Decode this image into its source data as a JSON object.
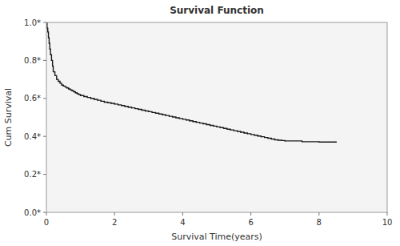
{
  "chart_data": {
    "type": "step",
    "title": "Survival Function",
    "xlabel": "Survival Time(years)",
    "ylabel": "Cum Survival",
    "x": [
      0.0,
      0.02,
      0.04,
      0.06,
      0.08,
      0.1,
      0.12,
      0.15,
      0.18,
      0.2,
      0.25,
      0.3,
      0.35,
      0.4,
      0.45,
      0.5,
      0.55,
      0.6,
      0.65,
      0.7,
      0.75,
      0.8,
      0.85,
      0.9,
      0.95,
      1.0,
      1.1,
      1.2,
      1.3,
      1.4,
      1.5,
      1.6,
      1.7,
      1.8,
      1.9,
      2.0,
      2.1,
      2.2,
      2.3,
      2.4,
      2.5,
      2.6,
      2.7,
      2.8,
      2.9,
      3.0,
      3.1,
      3.2,
      3.3,
      3.4,
      3.5,
      3.6,
      3.7,
      3.8,
      3.9,
      4.0,
      4.1,
      4.2,
      4.3,
      4.4,
      4.5,
      4.6,
      4.7,
      4.8,
      4.9,
      5.0,
      5.1,
      5.2,
      5.3,
      5.4,
      5.5,
      5.6,
      5.7,
      5.8,
      5.9,
      6.0,
      6.1,
      6.2,
      6.3,
      6.4,
      6.5,
      6.6,
      6.7,
      6.8,
      6.9,
      7.0,
      7.5,
      8.0,
      8.5
    ],
    "values": [
      1.0,
      0.97,
      0.95,
      0.92,
      0.89,
      0.86,
      0.83,
      0.8,
      0.77,
      0.74,
      0.72,
      0.7,
      0.69,
      0.68,
      0.67,
      0.665,
      0.66,
      0.655,
      0.65,
      0.645,
      0.64,
      0.635,
      0.63,
      0.625,
      0.62,
      0.615,
      0.61,
      0.605,
      0.6,
      0.595,
      0.59,
      0.585,
      0.58,
      0.577,
      0.574,
      0.57,
      0.566,
      0.562,
      0.558,
      0.554,
      0.55,
      0.546,
      0.542,
      0.538,
      0.534,
      0.53,
      0.526,
      0.522,
      0.518,
      0.514,
      0.51,
      0.506,
      0.502,
      0.498,
      0.494,
      0.49,
      0.486,
      0.482,
      0.478,
      0.474,
      0.47,
      0.466,
      0.462,
      0.458,
      0.454,
      0.45,
      0.446,
      0.442,
      0.438,
      0.434,
      0.43,
      0.426,
      0.422,
      0.418,
      0.414,
      0.41,
      0.406,
      0.402,
      0.398,
      0.394,
      0.39,
      0.386,
      0.382,
      0.38,
      0.378,
      0.376,
      0.372,
      0.37,
      0.37
    ],
    "color": "#1a1a1a",
    "xlim": [
      0,
      10
    ],
    "ylim": [
      0.0,
      1.0
    ],
    "xticks": [
      0,
      2,
      4,
      6,
      8,
      10
    ],
    "yticks": [
      {
        "value": 0.0,
        "label": "0.0*"
      },
      {
        "value": 0.2,
        "label": "0.2*"
      },
      {
        "value": 0.4,
        "label": "0.4*"
      },
      {
        "value": 0.6,
        "label": "0.6*"
      },
      {
        "value": 0.8,
        "label": "0.8*"
      },
      {
        "value": 1.0,
        "label": "1.0*"
      }
    ],
    "grid": false
  }
}
